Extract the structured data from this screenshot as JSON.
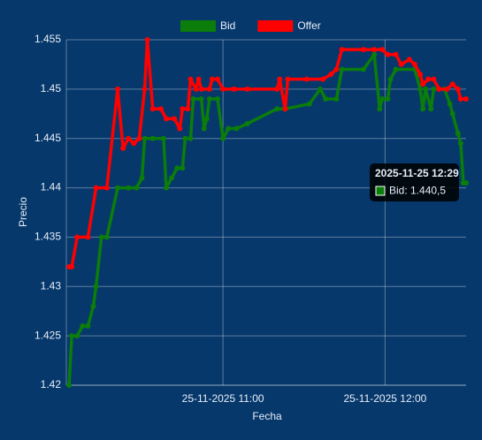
{
  "chart_data": {
    "type": "line",
    "x_label": "Fecha",
    "y_label": "Precio",
    "xlim": [
      "2025-11-25 10:02",
      "2025-11-25 12:30"
    ],
    "xticks": [
      {
        "value": "2025-11-25 11:00",
        "label": "25-11-2025 11:00"
      },
      {
        "value": "2025-11-25 12:00",
        "label": "25-11-2025 12:00"
      }
    ],
    "ylim": [
      1.42,
      1.455
    ],
    "yticks": [
      1.42,
      1.425,
      1.43,
      1.435,
      1.44,
      1.445,
      1.45,
      1.455
    ],
    "grid": true,
    "legend": "top",
    "series": [
      {
        "name": "Bid",
        "color": "#0a7d0a",
        "x": [
          "2025-11-25 10:03",
          "2025-11-25 10:04",
          "2025-11-25 10:06",
          "2025-11-25 10:08",
          "2025-11-25 10:10",
          "2025-11-25 10:12",
          "2025-11-25 10:13",
          "2025-11-25 10:15",
          "2025-11-25 10:17",
          "2025-11-25 10:21",
          "2025-11-25 10:25",
          "2025-11-25 10:28",
          "2025-11-25 10:30",
          "2025-11-25 10:31",
          "2025-11-25 10:34",
          "2025-11-25 10:38",
          "2025-11-25 10:39",
          "2025-11-25 10:41",
          "2025-11-25 10:43",
          "2025-11-25 10:45",
          "2025-11-25 10:46",
          "2025-11-25 10:48",
          "2025-11-25 10:49",
          "2025-11-25 10:52",
          "2025-11-25 10:53",
          "2025-11-25 10:54",
          "2025-11-25 10:55",
          "2025-11-25 10:58",
          "2025-11-25 11:00",
          "2025-11-25 11:02",
          "2025-11-25 11:05",
          "2025-11-25 11:09",
          "2025-11-25 11:20",
          "2025-11-25 11:23",
          "2025-11-25 11:32",
          "2025-11-25 11:36",
          "2025-11-25 11:38",
          "2025-11-25 11:42",
          "2025-11-25 11:44",
          "2025-11-25 11:52",
          "2025-11-25 11:56",
          "2025-11-25 11:58",
          "2025-11-25 11:59",
          "2025-11-25 12:01",
          "2025-11-25 12:02",
          "2025-11-25 12:04",
          "2025-11-25 12:11",
          "2025-11-25 12:13",
          "2025-11-25 12:14",
          "2025-11-25 12:15",
          "2025-11-25 12:17",
          "2025-11-25 12:18",
          "2025-11-25 12:22",
          "2025-11-25 12:24",
          "2025-11-25 12:25",
          "2025-11-25 12:27",
          "2025-11-25 12:28",
          "2025-11-25 12:29",
          "2025-11-25 12:30"
        ],
        "values": [
          1.42,
          1.425,
          1.425,
          1.426,
          1.426,
          1.428,
          1.43,
          1.435,
          1.435,
          1.44,
          1.44,
          1.44,
          1.441,
          1.445,
          1.445,
          1.445,
          1.44,
          1.441,
          1.442,
          1.442,
          1.445,
          1.445,
          1.449,
          1.449,
          1.446,
          1.447,
          1.449,
          1.449,
          1.445,
          1.446,
          1.446,
          1.4465,
          1.448,
          1.448,
          1.4485,
          1.45,
          1.449,
          1.449,
          1.452,
          1.452,
          1.4535,
          1.448,
          1.449,
          1.449,
          1.451,
          1.452,
          1.452,
          1.45,
          1.448,
          1.45,
          1.448,
          1.45,
          1.45,
          1.4485,
          1.4475,
          1.4455,
          1.4445,
          1.4405,
          1.4405
        ]
      },
      {
        "name": "Offer",
        "color": "#ff0000",
        "x": [
          "2025-11-25 10:03",
          "2025-11-25 10:04",
          "2025-11-25 10:06",
          "2025-11-25 10:10",
          "2025-11-25 10:13",
          "2025-11-25 10:17",
          "2025-11-25 10:21",
          "2025-11-25 10:23",
          "2025-11-25 10:25",
          "2025-11-25 10:27",
          "2025-11-25 10:29",
          "2025-11-25 10:31",
          "2025-11-25 10:32",
          "2025-11-25 10:34",
          "2025-11-25 10:37",
          "2025-11-25 10:39",
          "2025-11-25 10:42",
          "2025-11-25 10:44",
          "2025-11-25 10:45",
          "2025-11-25 10:47",
          "2025-11-25 10:48",
          "2025-11-25 10:50",
          "2025-11-25 10:51",
          "2025-11-25 10:52",
          "2025-11-25 10:55",
          "2025-11-25 10:56",
          "2025-11-25 10:58",
          "2025-11-25 11:00",
          "2025-11-25 11:04",
          "2025-11-25 11:09",
          "2025-11-25 11:20",
          "2025-11-25 11:21",
          "2025-11-25 11:23",
          "2025-11-25 11:24",
          "2025-11-25 11:31",
          "2025-11-25 11:37",
          "2025-11-25 11:40",
          "2025-11-25 11:42",
          "2025-11-25 11:44",
          "2025-11-25 11:52",
          "2025-11-25 11:56",
          "2025-11-25 11:59",
          "2025-11-25 12:01",
          "2025-11-25 12:04",
          "2025-11-25 12:06",
          "2025-11-25 12:09",
          "2025-11-25 12:11",
          "2025-11-25 12:13",
          "2025-11-25 12:14",
          "2025-11-25 12:16",
          "2025-11-25 12:18",
          "2025-11-25 12:20",
          "2025-11-25 12:23",
          "2025-11-25 12:25",
          "2025-11-25 12:27",
          "2025-11-25 12:28",
          "2025-11-25 12:30"
        ],
        "values": [
          1.432,
          1.432,
          1.435,
          1.435,
          1.44,
          1.44,
          1.45,
          1.444,
          1.445,
          1.4445,
          1.445,
          1.45,
          1.455,
          1.448,
          1.448,
          1.447,
          1.447,
          1.446,
          1.448,
          1.448,
          1.451,
          1.45,
          1.451,
          1.45,
          1.45,
          1.451,
          1.451,
          1.45,
          1.45,
          1.45,
          1.45,
          1.451,
          1.448,
          1.451,
          1.451,
          1.451,
          1.4515,
          1.452,
          1.454,
          1.454,
          1.454,
          1.454,
          1.4535,
          1.4535,
          1.4525,
          1.453,
          1.4525,
          1.4515,
          1.4505,
          1.451,
          1.451,
          1.45,
          1.45,
          1.4505,
          1.45,
          1.449,
          1.449
        ]
      }
    ],
    "tooltip": {
      "title": "2025-11-25 12:29",
      "text": "Bid: 1.440,5"
    }
  }
}
